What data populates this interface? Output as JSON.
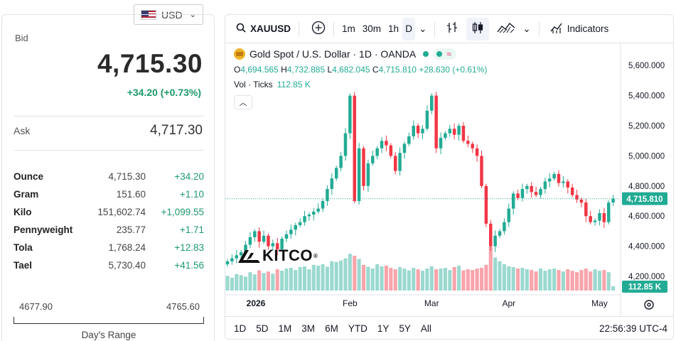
{
  "currency": {
    "code": "USD",
    "flag": "us-flag-icon"
  },
  "quote": {
    "bid_label": "Bid",
    "bid": "4,715.30",
    "change": "+34.20 (+0.73%)",
    "ask_label": "Ask",
    "ask": "4,717.30"
  },
  "units": [
    {
      "name": "Ounce",
      "value": "4,715.30",
      "change": "+34.20"
    },
    {
      "name": "Gram",
      "value": "151.60",
      "change": "+1.10"
    },
    {
      "name": "Kilo",
      "value": "151,602.74",
      "change": "+1,099.55"
    },
    {
      "name": "Pennyweight",
      "value": "235.77",
      "change": "+1.71"
    },
    {
      "name": "Tola",
      "value": "1,768.24",
      "change": "+12.83"
    },
    {
      "name": "Tael",
      "value": "5,730.40",
      "change": "+41.56"
    }
  ],
  "day_range": {
    "low": "4677.90",
    "high": "4765.60",
    "label": "Day's Range",
    "current_fraction": 0.42
  },
  "toolbar": {
    "symbol": "XAUUSD",
    "intervals": [
      "1m",
      "30m",
      "1h",
      "D"
    ],
    "active_interval": "D",
    "indicators_label": "Indicators"
  },
  "legend": {
    "title": "Gold Spot / U.S. Dollar · 1D · OANDA",
    "o_label": "O",
    "o": "4,694.565",
    "h_label": "H",
    "h": "4,732.885",
    "l_label": "L",
    "l": "4,682.045",
    "c_label": "C",
    "c": "4,715.810",
    "chg": "+28.630 (+0.61%)",
    "vol_label": "Vol · Ticks",
    "vol": "112.85 K"
  },
  "watermark": "KITCO",
  "bottom": {
    "ranges": [
      "1D",
      "5D",
      "1M",
      "3M",
      "6M",
      "YTD",
      "1Y",
      "5Y",
      "All"
    ],
    "time": "22:56:39 UTC-4"
  },
  "colors": {
    "up": "#22ab94",
    "down": "#f23645",
    "accent_green": "#1d9a6c"
  },
  "chart_data": {
    "type": "candlestick",
    "y_ticks": [
      "5,600.000",
      "5,400.000",
      "5,200.000",
      "5,000.000",
      "4,800.000",
      "4,600.000",
      "4,400.000",
      "4,200.000"
    ],
    "y_tick_values": [
      5600,
      5400,
      5200,
      5000,
      4800,
      4600,
      4400,
      4200
    ],
    "x_ticks": [
      "2026",
      "Feb",
      "Mar",
      "Apr",
      "May"
    ],
    "ylim": [
      4120,
      5700
    ],
    "last_price_label": "4,715.810",
    "last_price": 4715.81,
    "volume_label": "112.85 K",
    "close": [
      4300,
      4320,
      4340,
      4360,
      4410,
      4460,
      4500,
      4430,
      4470,
      4400,
      4420,
      4380,
      4450,
      4480,
      4510,
      4540,
      4560,
      4600,
      4610,
      4630,
      4650,
      4700,
      4780,
      4850,
      4920,
      5000,
      5150,
      5400,
      4700,
      5050,
      4800,
      4950,
      5000,
      5050,
      5100,
      5070,
      5000,
      4900,
      5020,
      5080,
      5130,
      5200,
      5150,
      5180,
      5300,
      5400,
      5050,
      5120,
      5150,
      5180,
      5140,
      5200,
      5100,
      5080,
      5050,
      5000,
      4800,
      4550,
      4400,
      4470,
      4500,
      4560,
      4650,
      4750,
      4720,
      4780,
      4800,
      4760,
      4740,
      4780,
      4830,
      4850,
      4880,
      4820,
      4830,
      4790,
      4740,
      4710,
      4690,
      4600,
      4560,
      4570,
      4620,
      4560,
      4690,
      4715.81
    ],
    "volume": [
      40,
      35,
      45,
      42,
      38,
      50,
      44,
      55,
      48,
      52,
      46,
      58,
      54,
      60,
      62,
      56,
      64,
      66,
      58,
      70,
      68,
      72,
      65,
      80,
      78,
      82,
      88,
      100,
      95,
      86,
      70,
      65,
      60,
      72,
      66,
      68,
      62,
      58,
      64,
      60,
      55,
      62,
      58,
      54,
      60,
      66,
      58,
      60,
      62,
      56,
      64,
      68,
      55,
      58,
      56,
      60,
      62,
      70,
      120,
      90,
      80,
      72,
      66,
      64,
      60,
      62,
      58,
      56,
      52,
      60,
      54,
      58,
      60,
      56,
      52,
      58,
      54,
      50,
      56,
      60,
      52,
      58,
      54,
      56,
      50,
      12
    ]
  }
}
